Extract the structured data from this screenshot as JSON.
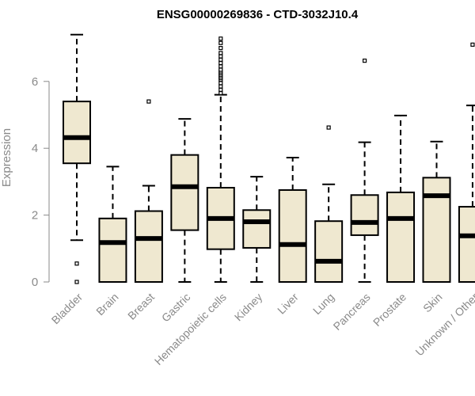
{
  "chart_data": {
    "type": "boxplot",
    "title": "ENSG00000269836 - CTD-3032J10.4",
    "xlabel": "",
    "ylabel": "Expression",
    "ylim": [
      0,
      7.5
    ],
    "yticks": [
      0,
      2,
      4,
      6
    ],
    "box_fill": "#efe8d0",
    "box_stroke": "#000000",
    "axis_color": "#8a8a8a",
    "categories": [
      "Bladder",
      "Brain",
      "Breast",
      "Gastric",
      "Hematopoietic cells",
      "Kidney",
      "Liver",
      "Lung",
      "Pancreas",
      "Prostate",
      "Skin",
      "Unknown / Other"
    ],
    "boxes": [
      {
        "category": "Bladder",
        "whisker_low": 1.25,
        "q1": 3.55,
        "median": 4.32,
        "q3": 5.4,
        "whisker_high": 7.4,
        "outliers": [
          0.55,
          0.0
        ]
      },
      {
        "category": "Brain",
        "whisker_low": 0.0,
        "q1": 0.0,
        "median": 1.18,
        "q3": 1.9,
        "whisker_high": 3.45,
        "outliers": []
      },
      {
        "category": "Breast",
        "whisker_low": 0.0,
        "q1": 0.0,
        "median": 1.3,
        "q3": 2.12,
        "whisker_high": 2.88,
        "outliers": [
          5.4
        ]
      },
      {
        "category": "Gastric",
        "whisker_low": 0.0,
        "q1": 1.55,
        "median": 2.85,
        "q3": 3.8,
        "whisker_high": 4.88,
        "outliers": []
      },
      {
        "category": "Hematopoietic cells",
        "whisker_low": 0.0,
        "q1": 0.98,
        "median": 1.9,
        "q3": 2.82,
        "whisker_high": 5.6,
        "outliers": [
          5.65,
          5.75,
          5.85,
          5.95,
          6.05,
          6.1,
          6.15,
          6.2,
          6.25,
          6.3,
          6.35,
          6.45,
          6.55,
          6.65,
          6.75,
          6.85,
          7.0,
          7.15,
          7.28
        ]
      },
      {
        "category": "Kidney",
        "whisker_low": 0.0,
        "q1": 1.02,
        "median": 1.8,
        "q3": 2.15,
        "whisker_high": 3.15,
        "outliers": []
      },
      {
        "category": "Liver",
        "whisker_low": 0.0,
        "q1": 0.0,
        "median": 1.12,
        "q3": 2.75,
        "whisker_high": 3.72,
        "outliers": []
      },
      {
        "category": "Lung",
        "whisker_low": 0.0,
        "q1": 0.0,
        "median": 0.62,
        "q3": 1.82,
        "whisker_high": 2.92,
        "outliers": [
          4.62
        ]
      },
      {
        "category": "Pancreas",
        "whisker_low": 0.0,
        "q1": 1.4,
        "median": 1.78,
        "q3": 2.6,
        "whisker_high": 4.18,
        "outliers": [
          6.62
        ]
      },
      {
        "category": "Prostate",
        "whisker_low": 0.0,
        "q1": 0.0,
        "median": 1.9,
        "q3": 2.68,
        "whisker_high": 4.98,
        "outliers": []
      },
      {
        "category": "Skin",
        "whisker_low": 0.0,
        "q1": 0.0,
        "median": 2.58,
        "q3": 3.12,
        "whisker_high": 4.2,
        "outliers": []
      },
      {
        "category": "Unknown / Other",
        "whisker_low": 0.0,
        "q1": 0.0,
        "median": 1.38,
        "q3": 2.25,
        "whisker_high": 5.28,
        "outliers": [
          7.1
        ]
      }
    ]
  }
}
